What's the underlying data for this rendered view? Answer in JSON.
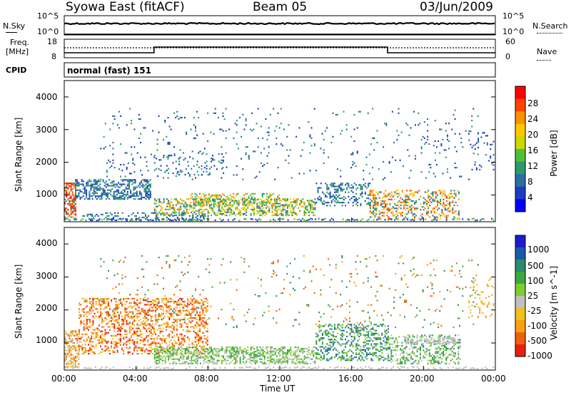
{
  "header": {
    "station": "Syowa East (fitACF)",
    "beam": "Beam 05",
    "date": "03/Jun/2009"
  },
  "side_labels": {
    "nsky": "N.Sky",
    "nsearch": "N.Search",
    "freq_line1": "Freq.",
    "freq_line2": "[MHz]",
    "nave": "Nave",
    "cpid": "CPID",
    "cpid_value": "normal (fast) 151"
  },
  "noise_panel": {
    "ticks": [
      "10^5",
      "10^0"
    ]
  },
  "freq_panel": {
    "left_ticks": [
      "18",
      "8"
    ],
    "right_ticks": [
      "60",
      "0"
    ]
  },
  "chart_data": [
    {
      "type": "heatmap",
      "variable": "power",
      "ylabel": "Slant Range [km]",
      "yticks": [
        1000,
        2000,
        3000,
        4000
      ],
      "ylim": [
        180,
        4500
      ],
      "xlim": [
        0,
        24
      ],
      "colorbar": {
        "label": "Power [dB]",
        "ticks": [
          "28",
          "24",
          "20",
          "16",
          "12",
          "8",
          "4"
        ],
        "colors": [
          "#ff0000",
          "#ff4400",
          "#ff9000",
          "#ffc800",
          "#c8d800",
          "#4fbf3a",
          "#2a9a6a",
          "#2a6fa0",
          "#1e3cc0",
          "#0000ff"
        ]
      }
    },
    {
      "type": "heatmap",
      "variable": "velocity",
      "ylabel": "Slant Range [km]",
      "yticks": [
        1000,
        2000,
        3000,
        4000
      ],
      "ylim": [
        180,
        4500
      ],
      "xlim": [
        0,
        24
      ],
      "colorbar": {
        "label": "Velocity [m s^-1]",
        "ticks": [
          "1000",
          "500",
          "100",
          "25",
          "-25",
          "-100",
          "-500",
          "-1000"
        ],
        "colors": [
          "#1c1ccc",
          "#1c5aa8",
          "#2c8a70",
          "#3aaa40",
          "#80cc30",
          "#c0c0c0",
          "#f0c020",
          "#f8a010",
          "#f06010",
          "#e82010"
        ]
      }
    }
  ],
  "xaxis": {
    "ticks": [
      "00:00",
      "04:00",
      "08:00",
      "12:00",
      "16:00",
      "20:00",
      "00:00"
    ],
    "label": "Time UT"
  }
}
